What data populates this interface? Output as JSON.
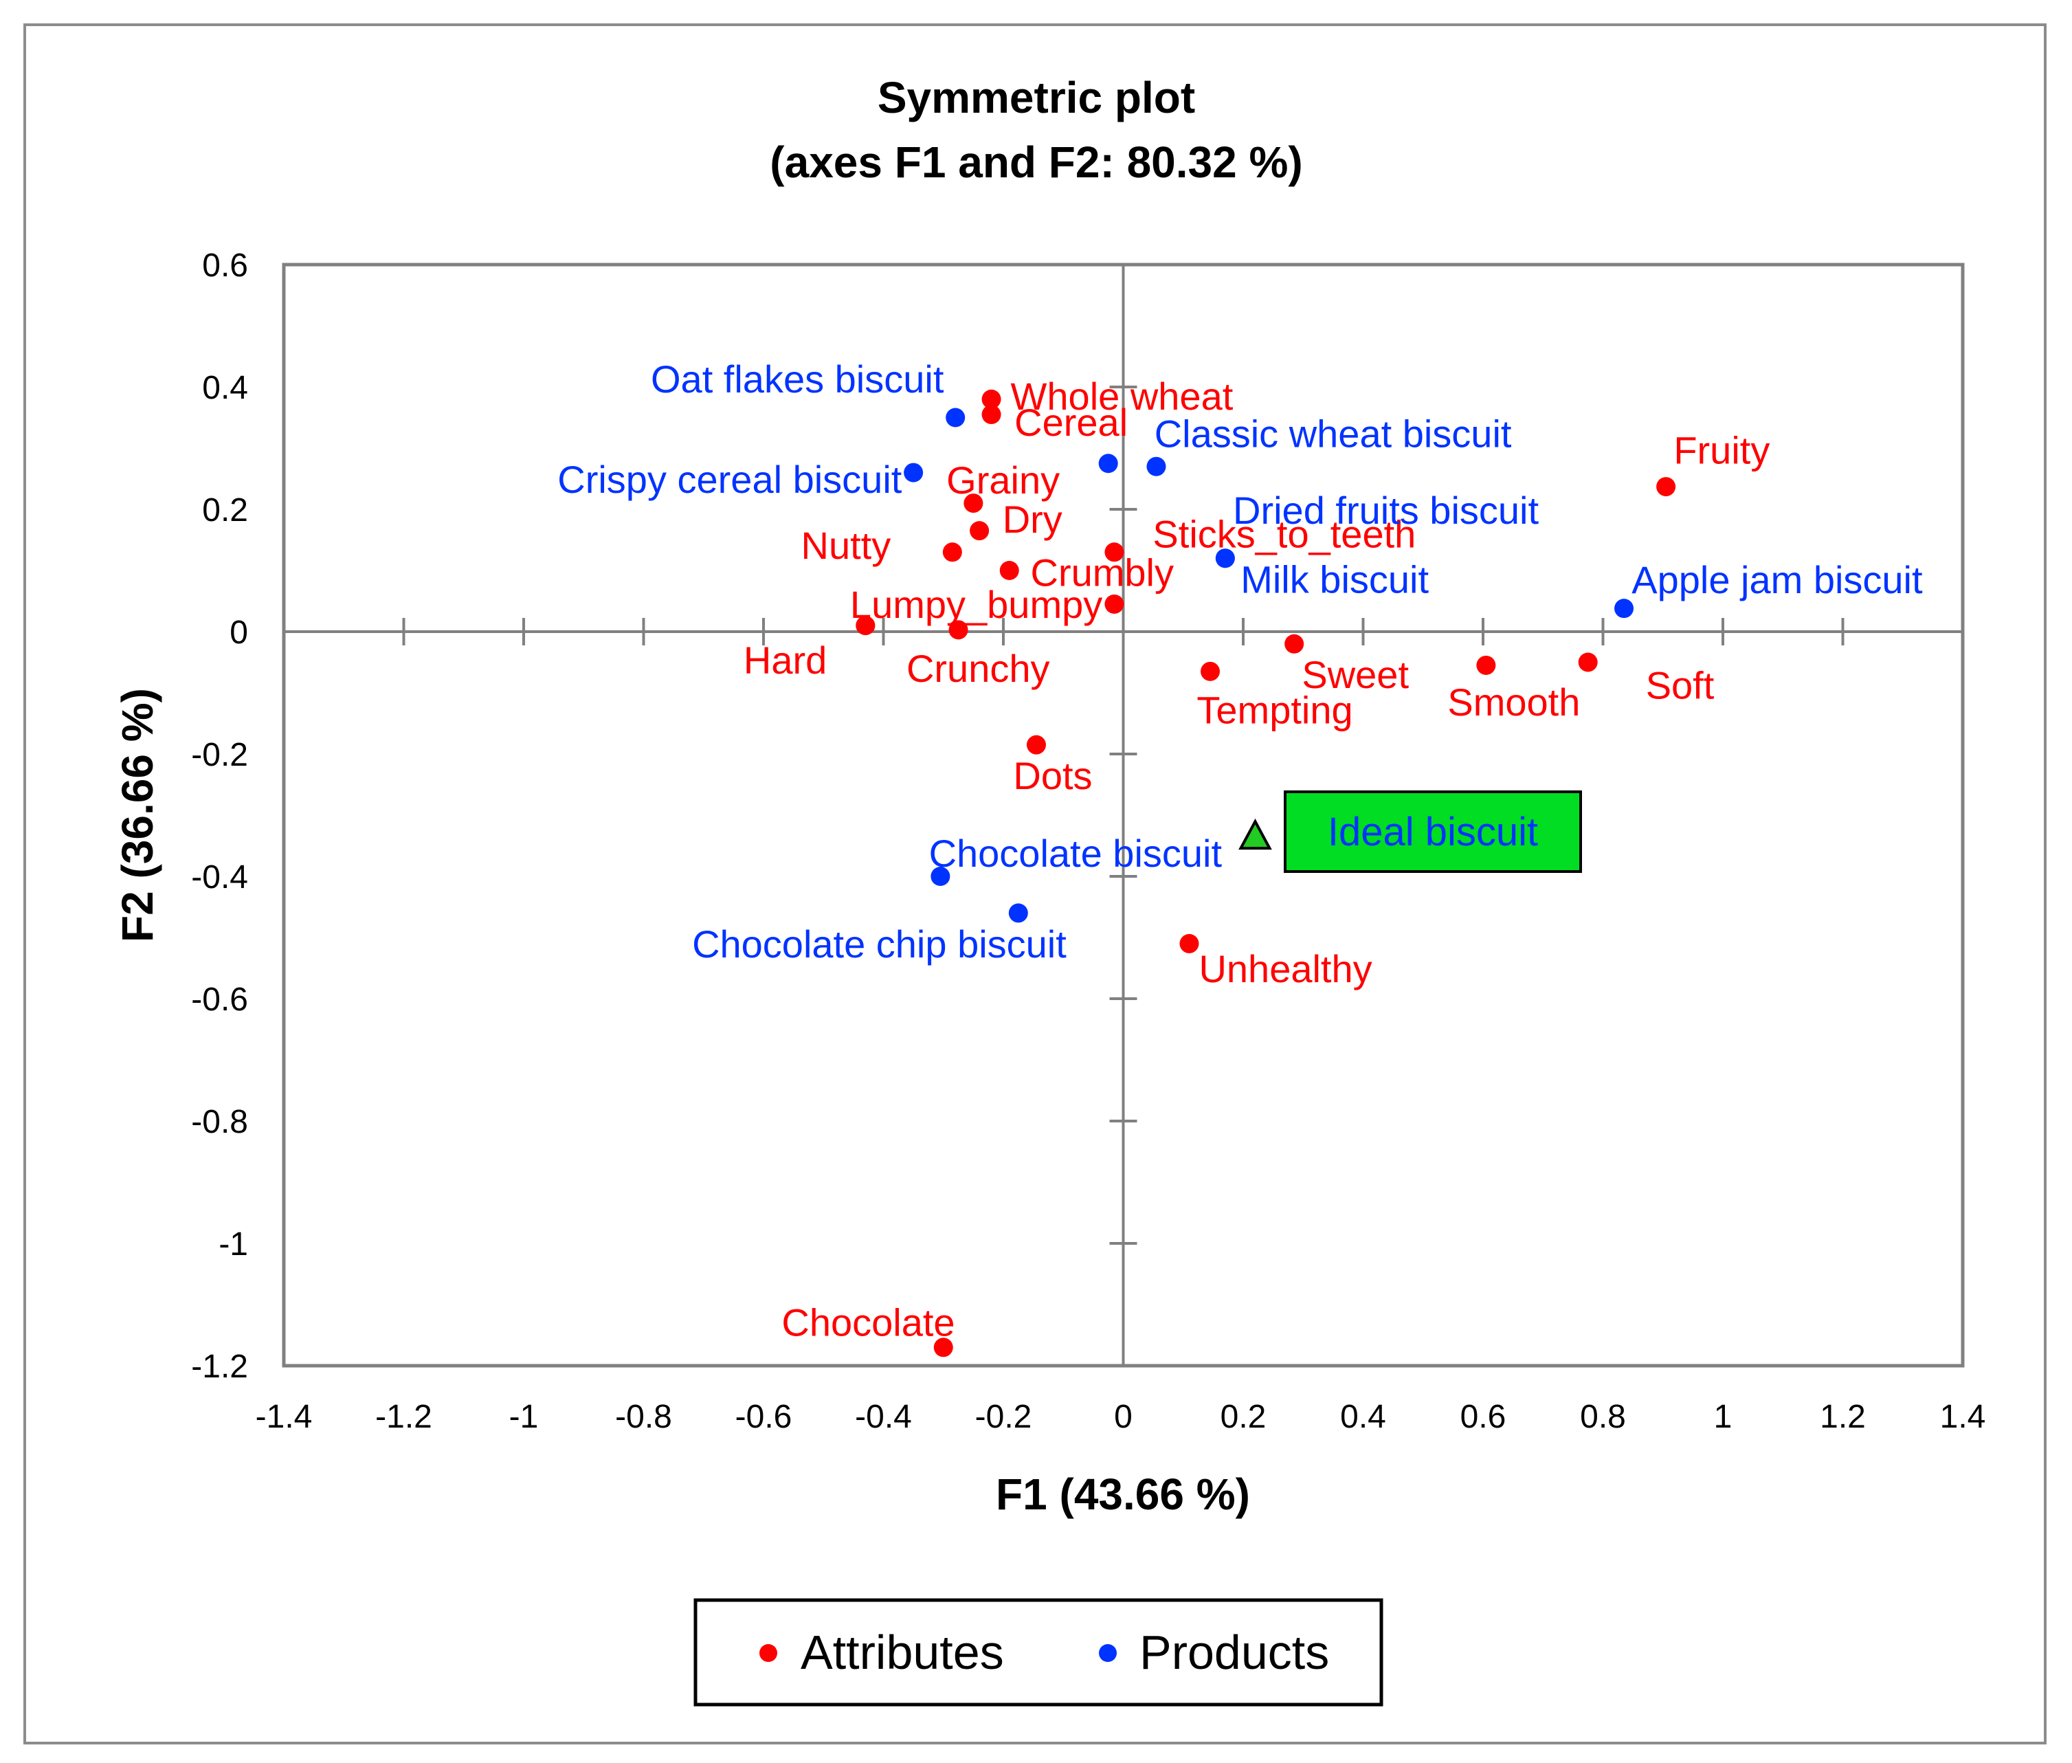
{
  "chart_data": {
    "type": "scatter",
    "title_line1": "Symmetric plot",
    "title_line2": "(axes F1 and F2: 80.32 %)",
    "xlabel": "F1 (43.66 %)",
    "ylabel": "F2 (36.66 %)",
    "xlim": [
      -1.4,
      1.4
    ],
    "ylim": [
      -1.2,
      0.6
    ],
    "xticks": [
      -1.4,
      -1.2,
      -1,
      -0.8,
      -0.6,
      -0.4,
      -0.2,
      0,
      0.2,
      0.4,
      0.6,
      0.8,
      1,
      1.2,
      1.4
    ],
    "yticks": [
      0.6,
      0.4,
      0.2,
      0,
      -0.2,
      -0.4,
      -0.6,
      -0.8,
      -1,
      -1.2
    ],
    "grid": false,
    "legend_position": "bottom-center",
    "colors": {
      "attributes": "#ff0000",
      "products": "#0033ff",
      "ideal_marker": "#22cc22",
      "ideal_box": "#00dd22",
      "axes": "#808080",
      "text": "#000000"
    },
    "series": [
      {
        "name": "Attributes",
        "key": "attributes",
        "points": [
          {
            "label": "Whole wheat",
            "x": -0.22,
            "y": 0.38,
            "anchor": "start",
            "dx": 1.0,
            "dy": -0.15
          },
          {
            "label": "Cereal",
            "x": -0.22,
            "y": 0.355,
            "anchor": "start",
            "dx": 1.2,
            "dy": 0.4
          },
          {
            "label": "Grainy",
            "x": -0.25,
            "y": 0.21,
            "anchor": "start",
            "dx": -1.4,
            "dy": -1.2
          },
          {
            "label": "Dry",
            "x": -0.24,
            "y": 0.165,
            "anchor": "start",
            "dx": 1.2,
            "dy": -0.6
          },
          {
            "label": "Nutty",
            "x": -0.285,
            "y": 0.13,
            "anchor": "end",
            "dx": -3.2,
            "dy": -0.35
          },
          {
            "label": "Crumbly",
            "x": -0.19,
            "y": 0.1,
            "anchor": "start",
            "dx": 1.1,
            "dy": 0.1
          },
          {
            "label": "Lumpy_bumpy",
            "x": -0.43,
            "y": 0.01,
            "anchor": "start",
            "dx": -0.8,
            "dy": -1.1
          },
          {
            "label": "Hard",
            "x": -0.43,
            "y": 0.01,
            "anchor": "end",
            "dx": -2.0,
            "dy": 1.8
          },
          {
            "label": "Crunchy",
            "x": -0.275,
            "y": 0.003,
            "anchor": "start",
            "dx": -2.7,
            "dy": 2.0
          },
          {
            "label": "Sticks_to_teeth",
            "x": -0.015,
            "y": 0.13,
            "anchor": "start",
            "dx": 2.0,
            "dy": -0.95
          },
          {
            "label": "",
            "x": -0.015,
            "y": 0.045,
            "anchor": "start",
            "dx": 0,
            "dy": 0
          },
          {
            "label": "Fruity",
            "x": 0.905,
            "y": 0.237,
            "anchor": "start",
            "dx": 0.4,
            "dy": -1.9
          },
          {
            "label": "Sweet",
            "x": 0.285,
            "y": -0.02,
            "anchor": "start",
            "dx": 0.4,
            "dy": 1.6
          },
          {
            "label": "Tempting",
            "x": 0.145,
            "y": -0.065,
            "anchor": "start",
            "dx": -0.7,
            "dy": 2.0
          },
          {
            "label": "Smooth",
            "x": 0.605,
            "y": -0.055,
            "anchor": "start",
            "dx": -2.0,
            "dy": 1.9
          },
          {
            "label": "Soft",
            "x": 0.775,
            "y": -0.05,
            "anchor": "start",
            "dx": 3.0,
            "dy": 1.2
          },
          {
            "label": "Dots",
            "x": -0.145,
            "y": -0.185,
            "anchor": "start",
            "dx": -1.2,
            "dy": 1.6
          },
          {
            "label": "Unhealthy",
            "x": 0.11,
            "y": -0.51,
            "anchor": "start",
            "dx": 0.5,
            "dy": 1.3
          },
          {
            "label": "Chocolate",
            "x": -0.3,
            "y": -1.17,
            "anchor": "end",
            "dx": 0.6,
            "dy": -1.3
          }
        ]
      },
      {
        "name": "Products",
        "key": "products",
        "points": [
          {
            "label": "Oat flakes biscuit",
            "x": -0.28,
            "y": 0.35,
            "anchor": "end",
            "dx": -0.6,
            "dy": -2.0
          },
          {
            "label": "Crispy cereal biscuit",
            "x": -0.35,
            "y": 0.26,
            "anchor": "end",
            "dx": -0.6,
            "dy": 0.35
          },
          {
            "label": "",
            "x": -0.025,
            "y": 0.275,
            "anchor": "start",
            "dx": 0,
            "dy": 0
          },
          {
            "label": "Classic wheat biscuit",
            "x": 0.055,
            "y": 0.27,
            "anchor": "start",
            "dx": -0.1,
            "dy": -1.7
          },
          {
            "label": "Dried fruits biscuit",
            "x": 0.17,
            "y": 0.12,
            "anchor": "start",
            "dx": 0.4,
            "dy": -2.5
          },
          {
            "label": "Milk biscuit",
            "x": 0.17,
            "y": 0.12,
            "anchor": "start",
            "dx": 0.8,
            "dy": 1.1
          },
          {
            "label": "Apple jam biscuit",
            "x": 0.835,
            "y": 0.038,
            "anchor": "start",
            "dx": 0.4,
            "dy": -1.5
          },
          {
            "label": "Chocolate biscuit",
            "x": -0.305,
            "y": -0.4,
            "anchor": "start",
            "dx": -0.6,
            "dy": -1.2
          },
          {
            "label": "Chocolate chip biscuit",
            "x": -0.175,
            "y": -0.46,
            "anchor": "end",
            "dx": 2.5,
            "dy": 1.6
          }
        ]
      }
    ],
    "ideal": {
      "label": "Ideal biscuit",
      "x": 0.22,
      "y": -0.335
    },
    "legend": [
      {
        "label": "Attributes",
        "key": "attributes"
      },
      {
        "label": "Products",
        "key": "products"
      }
    ]
  }
}
